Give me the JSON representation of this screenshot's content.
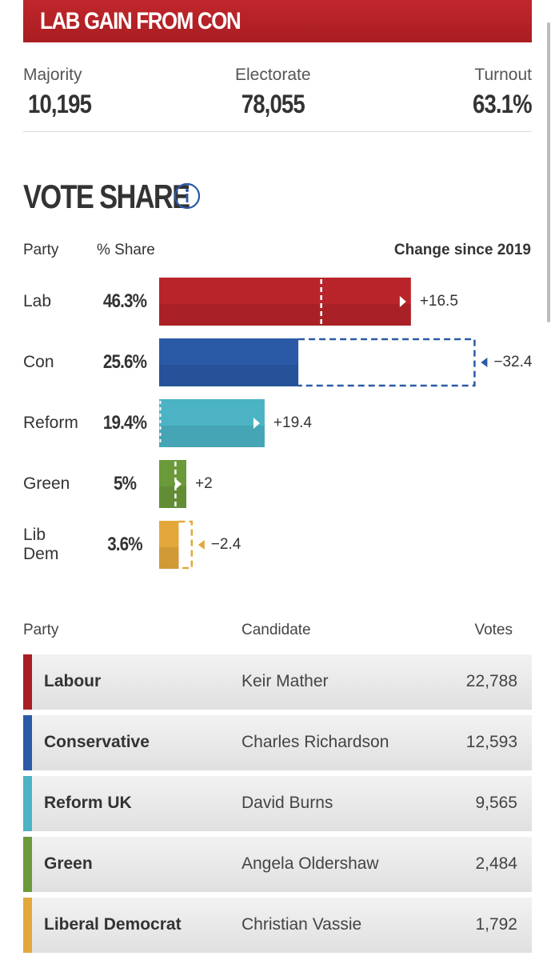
{
  "banner": {
    "text": "LAB GAIN FROM CON",
    "color": "#b22228"
  },
  "stats": {
    "majority_label": "Majority",
    "majority_value": "10,195",
    "electorate_label": "Electorate",
    "electorate_value": "78,055",
    "turnout_label": "Turnout",
    "turnout_value": "63.1%"
  },
  "vote_share": {
    "title": "VOTE SHARE",
    "info_icon": "info-circle-icon",
    "headers": {
      "party": "Party",
      "share": "% Share",
      "change": "Change since 2019"
    }
  },
  "chart_data": {
    "type": "bar",
    "categories": [
      "Lab",
      "Con",
      "Reform",
      "Green",
      "Lib Dem"
    ],
    "share_labels": [
      "46.3%",
      "25.6%",
      "19.4%",
      "5%",
      "3.6%"
    ],
    "values": [
      46.3,
      25.6,
      19.4,
      5,
      3.6
    ],
    "change_labels": [
      "+16.5",
      "−32.4",
      "+19.4",
      "+2",
      "−2.4"
    ],
    "changes": [
      16.5,
      -32.4,
      19.4,
      2,
      -2.4
    ],
    "colors": [
      "#b8242a",
      "#2a5aa6",
      "#4bb3c4",
      "#6b9a3a",
      "#e3a83b"
    ]
  },
  "results": {
    "headers": {
      "party": "Party",
      "candidate": "Candidate",
      "votes": "Votes"
    },
    "rows": [
      {
        "party": "Labour",
        "candidate": "Keir Mather",
        "votes": "22,788",
        "color": "#a81e24"
      },
      {
        "party": "Conservative",
        "candidate": "Charles Richardson",
        "votes": "12,593",
        "color": "#2a5aa6"
      },
      {
        "party": "Reform UK",
        "candidate": "David Burns",
        "votes": "9,565",
        "color": "#4bb3c4"
      },
      {
        "party": "Green",
        "candidate": "Angela Oldershaw",
        "votes": "2,484",
        "color": "#6b9a3a"
      },
      {
        "party": "Liberal Democrat",
        "candidate": "Christian Vassie",
        "votes": "1,792",
        "color": "#e3a83b"
      }
    ]
  }
}
